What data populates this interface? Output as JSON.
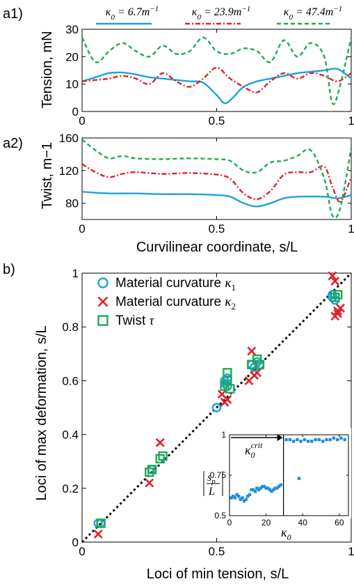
{
  "chart_data": [
    {
      "panel": "a1)",
      "type": "line",
      "ylabel": "Tension, mN",
      "xlim": [
        0,
        1
      ],
      "ylim": [
        0,
        30
      ],
      "xticks": [
        "0",
        "0.5",
        "1"
      ],
      "yticks": [
        "0",
        "10",
        "20",
        "30"
      ],
      "legend": {
        "placement": "top"
      },
      "series": [
        {
          "name": "κ0=6.7m−1",
          "legend_html": "&#954;<tspan baseline-shift='sub' font-size='11'>0</tspan> = 6.7<tspan>m</tspan><tspan baseline-shift='super' font-size='11'>−1</tspan>",
          "color": "#1aa3dd",
          "dash": "",
          "x": [
            0,
            0.05,
            0.1,
            0.15,
            0.2,
            0.25,
            0.3,
            0.35,
            0.4,
            0.45,
            0.5,
            0.53,
            0.56,
            0.6,
            0.65,
            0.7,
            0.75,
            0.8,
            0.85,
            0.9,
            0.95,
            1.0
          ],
          "y": [
            11,
            12.5,
            14,
            14.2,
            13.5,
            12.5,
            12,
            11.5,
            11,
            10.5,
            6,
            3,
            5,
            9,
            11,
            12,
            13,
            14,
            14.5,
            15,
            15.5,
            12
          ]
        },
        {
          "name": "κ0=23.9m−1",
          "legend_html": "&#954;<tspan baseline-shift='sub' font-size='11'>0</tspan> = 23.9<tspan>m</tspan><tspan baseline-shift='super' font-size='11'>−1</tspan>",
          "color": "#e0202a",
          "dash": "7,3,2,3",
          "x": [
            0,
            0.05,
            0.1,
            0.15,
            0.2,
            0.25,
            0.3,
            0.35,
            0.4,
            0.45,
            0.5,
            0.55,
            0.6,
            0.65,
            0.7,
            0.75,
            0.8,
            0.85,
            0.9,
            0.95,
            1.0
          ],
          "y": [
            11,
            11.5,
            12,
            13,
            12,
            10,
            14,
            11,
            9,
            12,
            16,
            12,
            9,
            7,
            11,
            14,
            12,
            14,
            13,
            11,
            14
          ]
        },
        {
          "name": "κ0=47.4m−1",
          "legend_html": "&#954;<tspan baseline-shift='sub' font-size='11'>0</tspan> = 47.4<tspan>m</tspan><tspan baseline-shift='super' font-size='11'>−1</tspan>",
          "color": "#1daa57",
          "dash": "6,4",
          "x": [
            0,
            0.05,
            0.1,
            0.15,
            0.2,
            0.25,
            0.3,
            0.35,
            0.4,
            0.45,
            0.5,
            0.55,
            0.6,
            0.65,
            0.7,
            0.75,
            0.8,
            0.85,
            0.9,
            0.93,
            0.96,
            1.0
          ],
          "y": [
            27,
            18,
            22,
            25,
            22,
            20,
            24,
            21,
            22,
            27,
            22,
            21,
            23,
            22,
            18,
            26,
            20,
            25,
            20,
            3,
            10,
            27
          ]
        }
      ]
    },
    {
      "panel": "a2)",
      "type": "line",
      "xlabel": "Curvilinear coordinate, s/L",
      "ylabel": "Twist, m−1",
      "xlim": [
        0,
        1
      ],
      "ylim": [
        60,
        160
      ],
      "xticks": [
        "0",
        "0.5",
        "1"
      ],
      "yticks": [
        "80",
        "120",
        "160"
      ],
      "series": [
        {
          "color": "#1aa3dd",
          "dash": "",
          "x": [
            0,
            0.1,
            0.2,
            0.3,
            0.4,
            0.5,
            0.55,
            0.6,
            0.65,
            0.7,
            0.75,
            0.8,
            0.9,
            0.95,
            1.0
          ],
          "y": [
            94,
            92,
            92,
            91,
            91,
            90,
            88,
            80,
            76,
            80,
            86,
            88,
            88,
            86,
            90
          ]
        },
        {
          "color": "#e0202a",
          "dash": "7,3,2,3",
          "x": [
            0,
            0.05,
            0.1,
            0.15,
            0.2,
            0.3,
            0.4,
            0.5,
            0.55,
            0.6,
            0.65,
            0.7,
            0.75,
            0.8,
            0.85,
            0.9,
            0.93,
            0.96,
            1.0
          ],
          "y": [
            128,
            118,
            112,
            116,
            118,
            116,
            117,
            115,
            110,
            92,
            85,
            95,
            115,
            118,
            118,
            125,
            100,
            82,
            112
          ]
        },
        {
          "color": "#1daa57",
          "dash": "6,4",
          "x": [
            0,
            0.05,
            0.1,
            0.15,
            0.2,
            0.3,
            0.4,
            0.5,
            0.55,
            0.6,
            0.65,
            0.7,
            0.75,
            0.8,
            0.85,
            0.9,
            0.93,
            0.96,
            1.0
          ],
          "y": [
            158,
            145,
            135,
            138,
            135,
            134,
            135,
            134,
            132,
            120,
            118,
            130,
            132,
            138,
            145,
            110,
            65,
            75,
            148
          ]
        }
      ]
    },
    {
      "panel": "b)",
      "type": "scatter",
      "xlabel": "Loci of min tension, s/L",
      "ylabel": "Loci of max deformation, s/L",
      "xlim": [
        0,
        1
      ],
      "ylim": [
        0,
        1
      ],
      "xticks": [
        "0",
        "0.5",
        "1"
      ],
      "yticks": [
        "0",
        "0.2",
        "0.4",
        "0.6",
        "0.8",
        "1"
      ],
      "legend": {
        "placement": "top-left"
      },
      "series": [
        {
          "name": "Material curvature κ1",
          "legend_text": "Material curvature ",
          "legend_sym": "κ",
          "legend_sub": "1",
          "marker": "circle",
          "color": "#1aa3dd",
          "x": [
            0.06,
            0.07,
            0.26,
            0.5,
            0.53,
            0.53,
            0.54,
            0.54,
            0.63,
            0.64,
            0.65,
            0.66,
            0.93,
            0.93,
            0.94
          ],
          "y": [
            0.07,
            0.07,
            0.27,
            0.5,
            0.59,
            0.6,
            0.61,
            0.58,
            0.66,
            0.65,
            0.67,
            0.66,
            0.91,
            0.92,
            0.9
          ]
        },
        {
          "name": "Material curvature κ2",
          "legend_text": "Material curvature ",
          "legend_sym": "κ",
          "legend_sub": "2",
          "marker": "x",
          "color": "#e0202a",
          "x": [
            0.06,
            0.25,
            0.29,
            0.52,
            0.53,
            0.54,
            0.62,
            0.63,
            0.64,
            0.65,
            0.93,
            0.94,
            0.95,
            0.96,
            0.94,
            0.95
          ],
          "y": [
            0.03,
            0.22,
            0.37,
            0.55,
            0.52,
            0.53,
            0.6,
            0.71,
            0.62,
            0.63,
            0.99,
            0.97,
            0.86,
            0.87,
            0.84,
            0.85
          ]
        },
        {
          "name": "Twist τ",
          "legend_text": "Twist ",
          "legend_sym": "τ",
          "legend_sub": "",
          "marker": "square",
          "color": "#1daa57",
          "x": [
            0.07,
            0.25,
            0.26,
            0.29,
            0.3,
            0.53,
            0.54,
            0.54,
            0.55,
            0.63,
            0.65,
            0.66,
            0.94,
            0.95
          ],
          "y": [
            0.07,
            0.26,
            0.27,
            0.31,
            0.32,
            0.58,
            0.6,
            0.63,
            0.57,
            0.66,
            0.68,
            0.66,
            0.91,
            0.92
          ]
        }
      ],
      "reference_line": {
        "x": [
          0,
          1
        ],
        "y": [
          0,
          1
        ],
        "style": "dotted",
        "color": "#000000"
      },
      "inset": {
        "type": "scatter",
        "xlim": [
          0,
          65
        ],
        "ylim": [
          0.5,
          1
        ],
        "xticks": [
          "0",
          "20",
          "40",
          "60"
        ],
        "yticks": [
          "0.5",
          "0.75",
          "1"
        ],
        "xlabel_sym": "κ",
        "xlabel_sub": "0",
        "annotation_sym": "κ",
        "annotation_sub": "0",
        "annotation_sup": "crit",
        "critical_x": 29.5,
        "color": "#1e8fd6",
        "x": [
          1,
          2,
          3,
          4,
          5,
          6,
          7,
          8,
          9,
          10,
          11,
          12,
          13,
          14,
          15,
          16,
          17,
          18,
          19,
          20,
          21,
          22,
          23,
          24,
          25,
          26,
          27,
          28,
          31,
          33,
          35,
          37,
          39,
          41,
          43,
          45,
          47,
          49,
          51,
          53,
          55,
          57,
          59,
          61,
          63,
          38
        ],
        "y": [
          0.61,
          0.62,
          0.61,
          0.63,
          0.62,
          0.6,
          0.61,
          0.59,
          0.6,
          0.62,
          0.63,
          0.66,
          0.66,
          0.65,
          0.67,
          0.66,
          0.67,
          0.68,
          0.68,
          0.67,
          0.67,
          0.66,
          0.65,
          0.66,
          0.67,
          0.67,
          0.68,
          0.69,
          0.97,
          0.97,
          0.96,
          0.97,
          0.96,
          0.97,
          0.96,
          0.96,
          0.97,
          0.97,
          0.96,
          0.97,
          0.97,
          0.98,
          0.97,
          0.98,
          0.97,
          0.73
        ]
      }
    }
  ]
}
